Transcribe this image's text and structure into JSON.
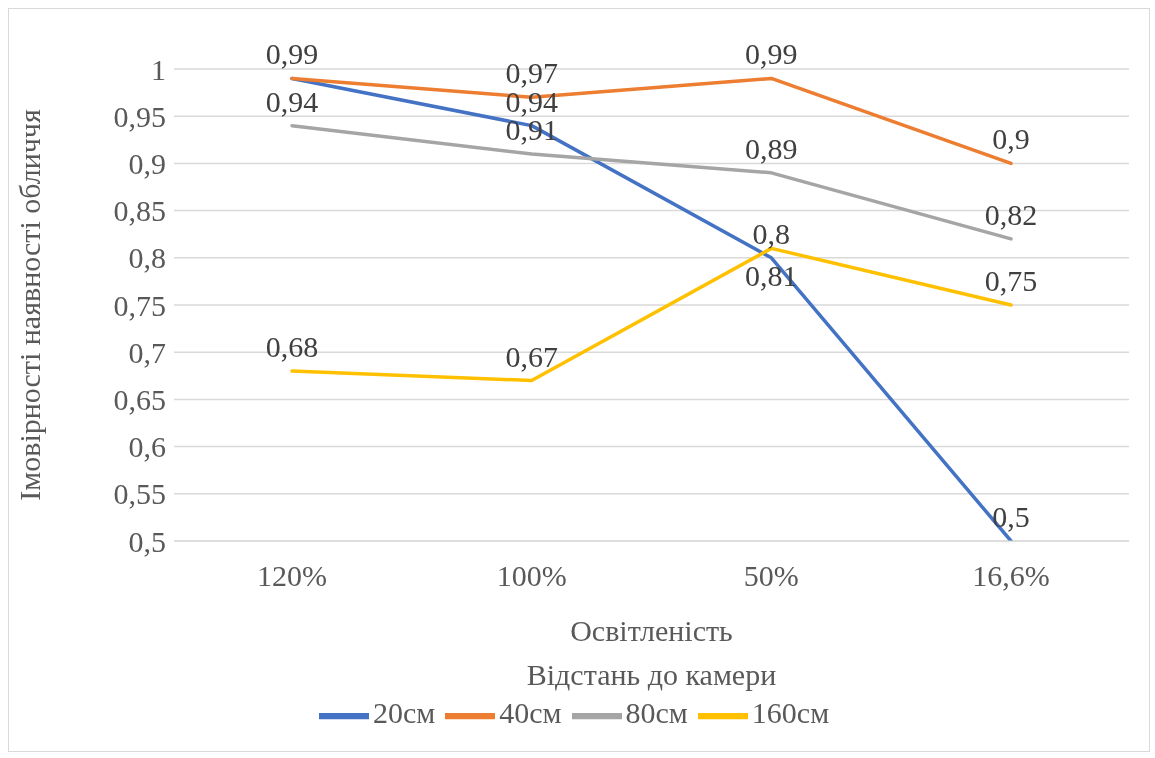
{
  "chart_data": {
    "type": "line",
    "xlabel": "Освітленість\nВідстань до камери",
    "ylabel": "Імовірності наявності обличчя",
    "categories": [
      "120%",
      "100%",
      "50%",
      "16,6%"
    ],
    "series": [
      {
        "name": "20см",
        "color": "#4472c4",
        "values": [
          0.99,
          0.94,
          0.8,
          0.5
        ],
        "value_labels": [
          null,
          "0,94",
          "0,8",
          "0,5"
        ]
      },
      {
        "name": "40см",
        "color": "#ed7d31",
        "values": [
          0.99,
          0.97,
          0.99,
          0.9
        ],
        "value_labels": [
          "0,99",
          "0,97",
          "0,99",
          "0,9"
        ]
      },
      {
        "name": "80см",
        "color": "#a5a5a5",
        "values": [
          0.94,
          0.91,
          0.89,
          0.82
        ],
        "value_labels": [
          "0,94",
          "0,91",
          "0,89",
          "0,82"
        ]
      },
      {
        "name": "160см",
        "color": "#ffc000",
        "values": [
          0.68,
          0.67,
          0.81,
          0.75
        ],
        "value_labels": [
          "0,68",
          "0,67",
          "0,81",
          "0,75"
        ]
      }
    ],
    "ylim": [
      0.5,
      1
    ],
    "yticks": [
      {
        "value": 0.5,
        "label": "0,5"
      },
      {
        "value": 0.55,
        "label": "0,55"
      },
      {
        "value": 0.6,
        "label": "0,6"
      },
      {
        "value": 0.65,
        "label": "0,65"
      },
      {
        "value": 0.7,
        "label": "0,7"
      },
      {
        "value": 0.75,
        "label": "0,75"
      },
      {
        "value": 0.8,
        "label": "0,8"
      },
      {
        "value": 0.85,
        "label": "0,85"
      },
      {
        "value": 0.9,
        "label": "0,9"
      },
      {
        "value": 0.95,
        "label": "0,95"
      },
      {
        "value": 1,
        "label": "1"
      }
    ],
    "grid": "y",
    "legend": "bottom",
    "marker": "none",
    "line_style": "solid"
  }
}
